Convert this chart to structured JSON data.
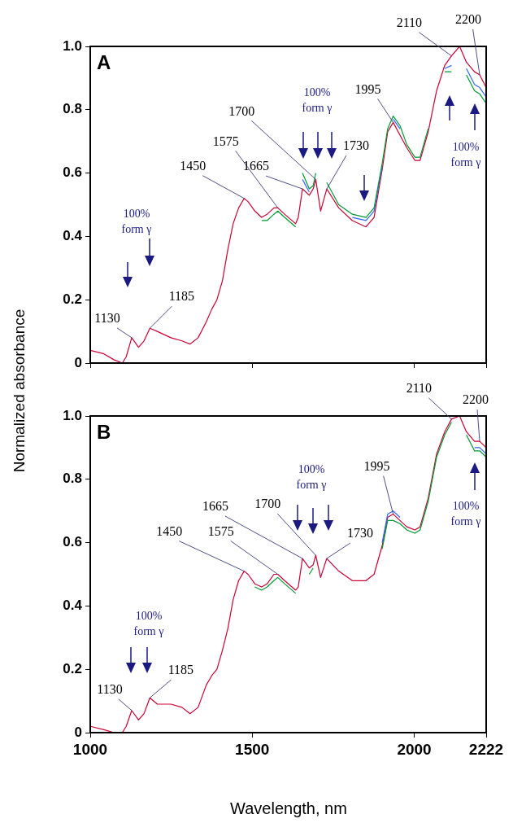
{
  "chart_data": [
    {
      "type": "line",
      "title": "A",
      "ylabel": "Normalized absorbance",
      "xlim": [
        1000,
        2222
      ],
      "xticks": [
        1000,
        1500,
        2000,
        2222
      ],
      "ylim": [
        0,
        1
      ],
      "yticks": [
        0,
        0.2,
        0.4,
        0.6,
        0.8,
        {
          "value": 1,
          "label": "1.0"
        }
      ],
      "tick_labels": "y",
      "x": [
        1000,
        1040,
        1074,
        1099,
        1111,
        1128,
        1149,
        1166,
        1184,
        1207,
        1249,
        1283,
        1308,
        1333,
        1358,
        1375,
        1391,
        1408,
        1425,
        1441,
        1458,
        1475,
        1487,
        1508,
        1529,
        1546,
        1567,
        1579,
        1600,
        1634,
        1642,
        1655,
        1676,
        1688,
        1696,
        1711,
        1730,
        1767,
        1809,
        1851,
        1876,
        1901,
        1918,
        1935,
        1956,
        1977,
        2002,
        2018,
        2043,
        2069,
        2094,
        2115,
        2140,
        2161,
        2186,
        2202,
        2222
      ],
      "series": [
        {
          "color": "#009933",
          "values": [
            null,
            null,
            null,
            null,
            null,
            null,
            null,
            null,
            null,
            null,
            null,
            null,
            null,
            null,
            null,
            null,
            null,
            null,
            null,
            null,
            null,
            null,
            null,
            null,
            0.45,
            0.45,
            0.47,
            0.48,
            0.46,
            0.43,
            null,
            0.6,
            0.55,
            0.56,
            0.6,
            null,
            0.57,
            0.5,
            0.47,
            0.46,
            0.49,
            0.63,
            0.74,
            0.78,
            0.75,
            0.69,
            0.65,
            0.65,
            0.74,
            null,
            0.92,
            0.92,
            null,
            0.91,
            0.86,
            0.85,
            0.82
          ]
        },
        {
          "color": "#3366ff",
          "values": [
            null,
            null,
            null,
            null,
            null,
            null,
            null,
            null,
            null,
            null,
            null,
            null,
            null,
            null,
            null,
            null,
            null,
            null,
            null,
            null,
            null,
            null,
            null,
            null,
            null,
            null,
            null,
            null,
            null,
            null,
            null,
            0.58,
            0.54,
            null,
            null,
            null,
            null,
            null,
            0.46,
            0.45,
            0.48,
            0.62,
            null,
            0.77,
            0.74,
            null,
            null,
            null,
            null,
            null,
            0.93,
            0.94,
            null,
            0.93,
            0.88,
            0.87,
            0.84
          ]
        },
        {
          "color": "#cc0033",
          "values": [
            0.04,
            0.03,
            0.01,
            0.0,
            0.02,
            0.08,
            0.05,
            0.07,
            0.11,
            0.1,
            0.08,
            0.07,
            0.06,
            0.08,
            0.13,
            0.17,
            0.2,
            0.26,
            0.36,
            0.44,
            0.49,
            0.52,
            0.51,
            0.48,
            0.46,
            0.47,
            0.49,
            0.49,
            0.47,
            0.44,
            0.46,
            0.55,
            0.53,
            0.55,
            0.58,
            0.48,
            0.55,
            0.49,
            0.45,
            0.43,
            0.46,
            0.61,
            0.73,
            0.76,
            0.72,
            0.68,
            0.64,
            0.64,
            0.73,
            0.86,
            0.94,
            0.97,
            1.0,
            0.95,
            0.92,
            0.91,
            0.87
          ]
        }
      ],
      "annotations": [
        {
          "text": "1130",
          "x": 1128,
          "y": 0.08
        },
        {
          "text": "1185",
          "x": 1184,
          "y": 0.11
        },
        {
          "text": "1450",
          "x": 1475,
          "y": 0.52
        },
        {
          "text": "1575",
          "x": 1579,
          "y": 0.49
        },
        {
          "text": "1665",
          "x": 1655,
          "y": 0.55
        },
        {
          "text": "1700",
          "x": 1696,
          "y": 0.58
        },
        {
          "text": "1730",
          "x": 1730,
          "y": 0.55
        },
        {
          "text": "1995",
          "x": 1935,
          "y": 0.76
        },
        {
          "text": "2110",
          "x": 2115,
          "y": 0.97
        },
        {
          "text": "2200",
          "x": 2202,
          "y": 0.91
        },
        "100% form γ",
        "100% form γ",
        "100% form γ"
      ]
    },
    {
      "type": "line",
      "title": "B",
      "xlabel": "Wavelength, nm",
      "xlim": [
        1000,
        2222
      ],
      "xticks": [
        1000,
        1500,
        2000,
        2222
      ],
      "ylim": [
        0,
        1
      ],
      "yticks": [
        0,
        0.2,
        0.4,
        0.6,
        0.8,
        {
          "value": 1,
          "label": "1.0"
        }
      ],
      "x": [
        1000,
        1040,
        1074,
        1099,
        1111,
        1128,
        1149,
        1166,
        1184,
        1207,
        1249,
        1283,
        1308,
        1333,
        1358,
        1375,
        1391,
        1408,
        1425,
        1441,
        1458,
        1475,
        1487,
        1508,
        1529,
        1546,
        1567,
        1579,
        1600,
        1634,
        1642,
        1655,
        1676,
        1688,
        1696,
        1711,
        1730,
        1767,
        1809,
        1851,
        1876,
        1901,
        1918,
        1935,
        1956,
        1977,
        2002,
        2018,
        2043,
        2069,
        2094,
        2115,
        2140,
        2161,
        2186,
        2202,
        2222
      ],
      "series": [
        {
          "color": "#009933",
          "values": [
            null,
            null,
            null,
            null,
            null,
            null,
            null,
            null,
            null,
            null,
            null,
            null,
            null,
            null,
            null,
            null,
            null,
            null,
            null,
            null,
            null,
            null,
            null,
            0.46,
            0.45,
            0.46,
            0.48,
            0.49,
            0.47,
            0.44,
            null,
            null,
            0.5,
            0.52,
            null,
            null,
            null,
            null,
            null,
            null,
            null,
            0.58,
            0.67,
            0.67,
            0.66,
            0.64,
            0.63,
            0.64,
            0.73,
            0.87,
            0.94,
            0.98,
            null,
            0.94,
            0.89,
            0.89,
            0.87
          ]
        },
        {
          "color": "#3366ff",
          "values": [
            null,
            null,
            null,
            null,
            null,
            null,
            null,
            null,
            null,
            null,
            null,
            null,
            null,
            null,
            null,
            null,
            null,
            null,
            null,
            null,
            null,
            null,
            null,
            null,
            null,
            null,
            null,
            null,
            null,
            null,
            null,
            null,
            null,
            null,
            null,
            null,
            null,
            null,
            null,
            null,
            null,
            0.6,
            0.69,
            0.7,
            0.68,
            null,
            null,
            null,
            null,
            null,
            null,
            null,
            null,
            null,
            0.9,
            0.9,
            0.88
          ]
        },
        {
          "color": "#cc0033",
          "values": [
            0.02,
            0.01,
            0.0,
            0.0,
            0.02,
            0.07,
            0.04,
            0.06,
            0.11,
            0.09,
            0.09,
            0.08,
            0.06,
            0.08,
            0.15,
            0.18,
            0.2,
            0.26,
            0.33,
            0.42,
            0.48,
            0.51,
            0.5,
            0.47,
            0.46,
            0.47,
            0.5,
            0.5,
            0.48,
            0.45,
            0.46,
            0.55,
            0.52,
            0.53,
            0.56,
            0.49,
            0.55,
            0.51,
            0.48,
            0.48,
            0.5,
            0.59,
            0.68,
            0.69,
            0.67,
            0.65,
            0.64,
            0.65,
            0.74,
            0.88,
            0.95,
            0.99,
            1.0,
            0.95,
            0.92,
            0.92,
            0.9
          ]
        }
      ],
      "annotations": [
        {
          "text": "1130",
          "x": 1128,
          "y": 0.07
        },
        {
          "text": "1185",
          "x": 1184,
          "y": 0.11
        },
        {
          "text": "1450",
          "x": 1475,
          "y": 0.51
        },
        {
          "text": "1575",
          "x": 1579,
          "y": 0.5
        },
        {
          "text": "1665",
          "x": 1655,
          "y": 0.55
        },
        {
          "text": "1700",
          "x": 1696,
          "y": 0.56
        },
        {
          "text": "1730",
          "x": 1730,
          "y": 0.55
        },
        {
          "text": "1995",
          "x": 1935,
          "y": 0.69
        },
        {
          "text": "2110",
          "x": 2115,
          "y": 0.99
        },
        {
          "text": "2200",
          "x": 2202,
          "y": 0.92
        },
        "100% form γ",
        "100% form γ",
        "100% form γ"
      ]
    }
  ]
}
